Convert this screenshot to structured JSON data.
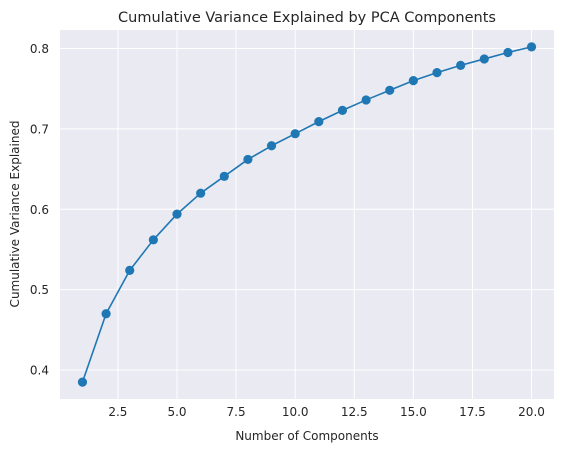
{
  "chart_data": {
    "type": "line",
    "title": "Cumulative Variance Explained by PCA Components",
    "xlabel": "Number of Components",
    "ylabel": "Cumulative Variance Explained",
    "xlim": [
      0.05,
      20.95
    ],
    "ylim": [
      0.364,
      0.823
    ],
    "xticks": [
      2.5,
      5.0,
      7.5,
      10.0,
      12.5,
      15.0,
      17.5,
      20.0
    ],
    "xtick_labels": [
      "2.5",
      "5.0",
      "7.5",
      "10.0",
      "12.5",
      "15.0",
      "17.5",
      "20.0"
    ],
    "yticks": [
      0.4,
      0.5,
      0.6,
      0.7,
      0.8
    ],
    "ytick_labels": [
      "0.4",
      "0.5",
      "0.6",
      "0.7",
      "0.8"
    ],
    "grid": true,
    "marker": "circle",
    "colors": {
      "series": "#1f77b4",
      "plot_bg": "#eaeaf2",
      "grid": "#ffffff",
      "text": "#262626"
    },
    "x": [
      1,
      2,
      3,
      4,
      5,
      6,
      7,
      8,
      9,
      10,
      11,
      12,
      13,
      14,
      15,
      16,
      17,
      18,
      19,
      20
    ],
    "series": [
      {
        "values": [
          0.385,
          0.47,
          0.524,
          0.562,
          0.594,
          0.62,
          0.641,
          0.662,
          0.679,
          0.694,
          0.709,
          0.723,
          0.736,
          0.748,
          0.76,
          0.77,
          0.779,
          0.787,
          0.795,
          0.802
        ]
      }
    ]
  }
}
